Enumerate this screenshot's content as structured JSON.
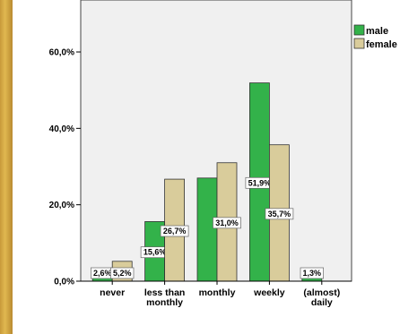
{
  "chart_data": {
    "type": "bar",
    "title": "",
    "xlabel": "",
    "ylabel": "",
    "categories": [
      [
        "never"
      ],
      [
        "less than",
        "monthly"
      ],
      [
        "monthly"
      ],
      [
        "weekly"
      ],
      [
        "(almost)",
        "daily"
      ]
    ],
    "series": [
      {
        "name": "male",
        "color": "#33b24a",
        "values": [
          2.6,
          15.6,
          27.0,
          51.9,
          1.3
        ],
        "labels": [
          "2,6%",
          "15,6%",
          "",
          "51,9%",
          "1,3%"
        ]
      },
      {
        "name": "female",
        "color": "#d9cc9b",
        "values": [
          5.2,
          26.7,
          31.0,
          35.7,
          0
        ],
        "labels": [
          "5,2%",
          "26,7%",
          "31,0%",
          "35,7%",
          ""
        ]
      }
    ],
    "yticks": [
      0,
      20,
      40,
      60
    ],
    "ytick_labels": [
      "0,0%",
      "20,0%",
      "40,0%",
      "60,0%"
    ],
    "ylim": [
      0,
      73.6
    ],
    "legend": "top-right",
    "plot_background": "#f0f0f0"
  }
}
